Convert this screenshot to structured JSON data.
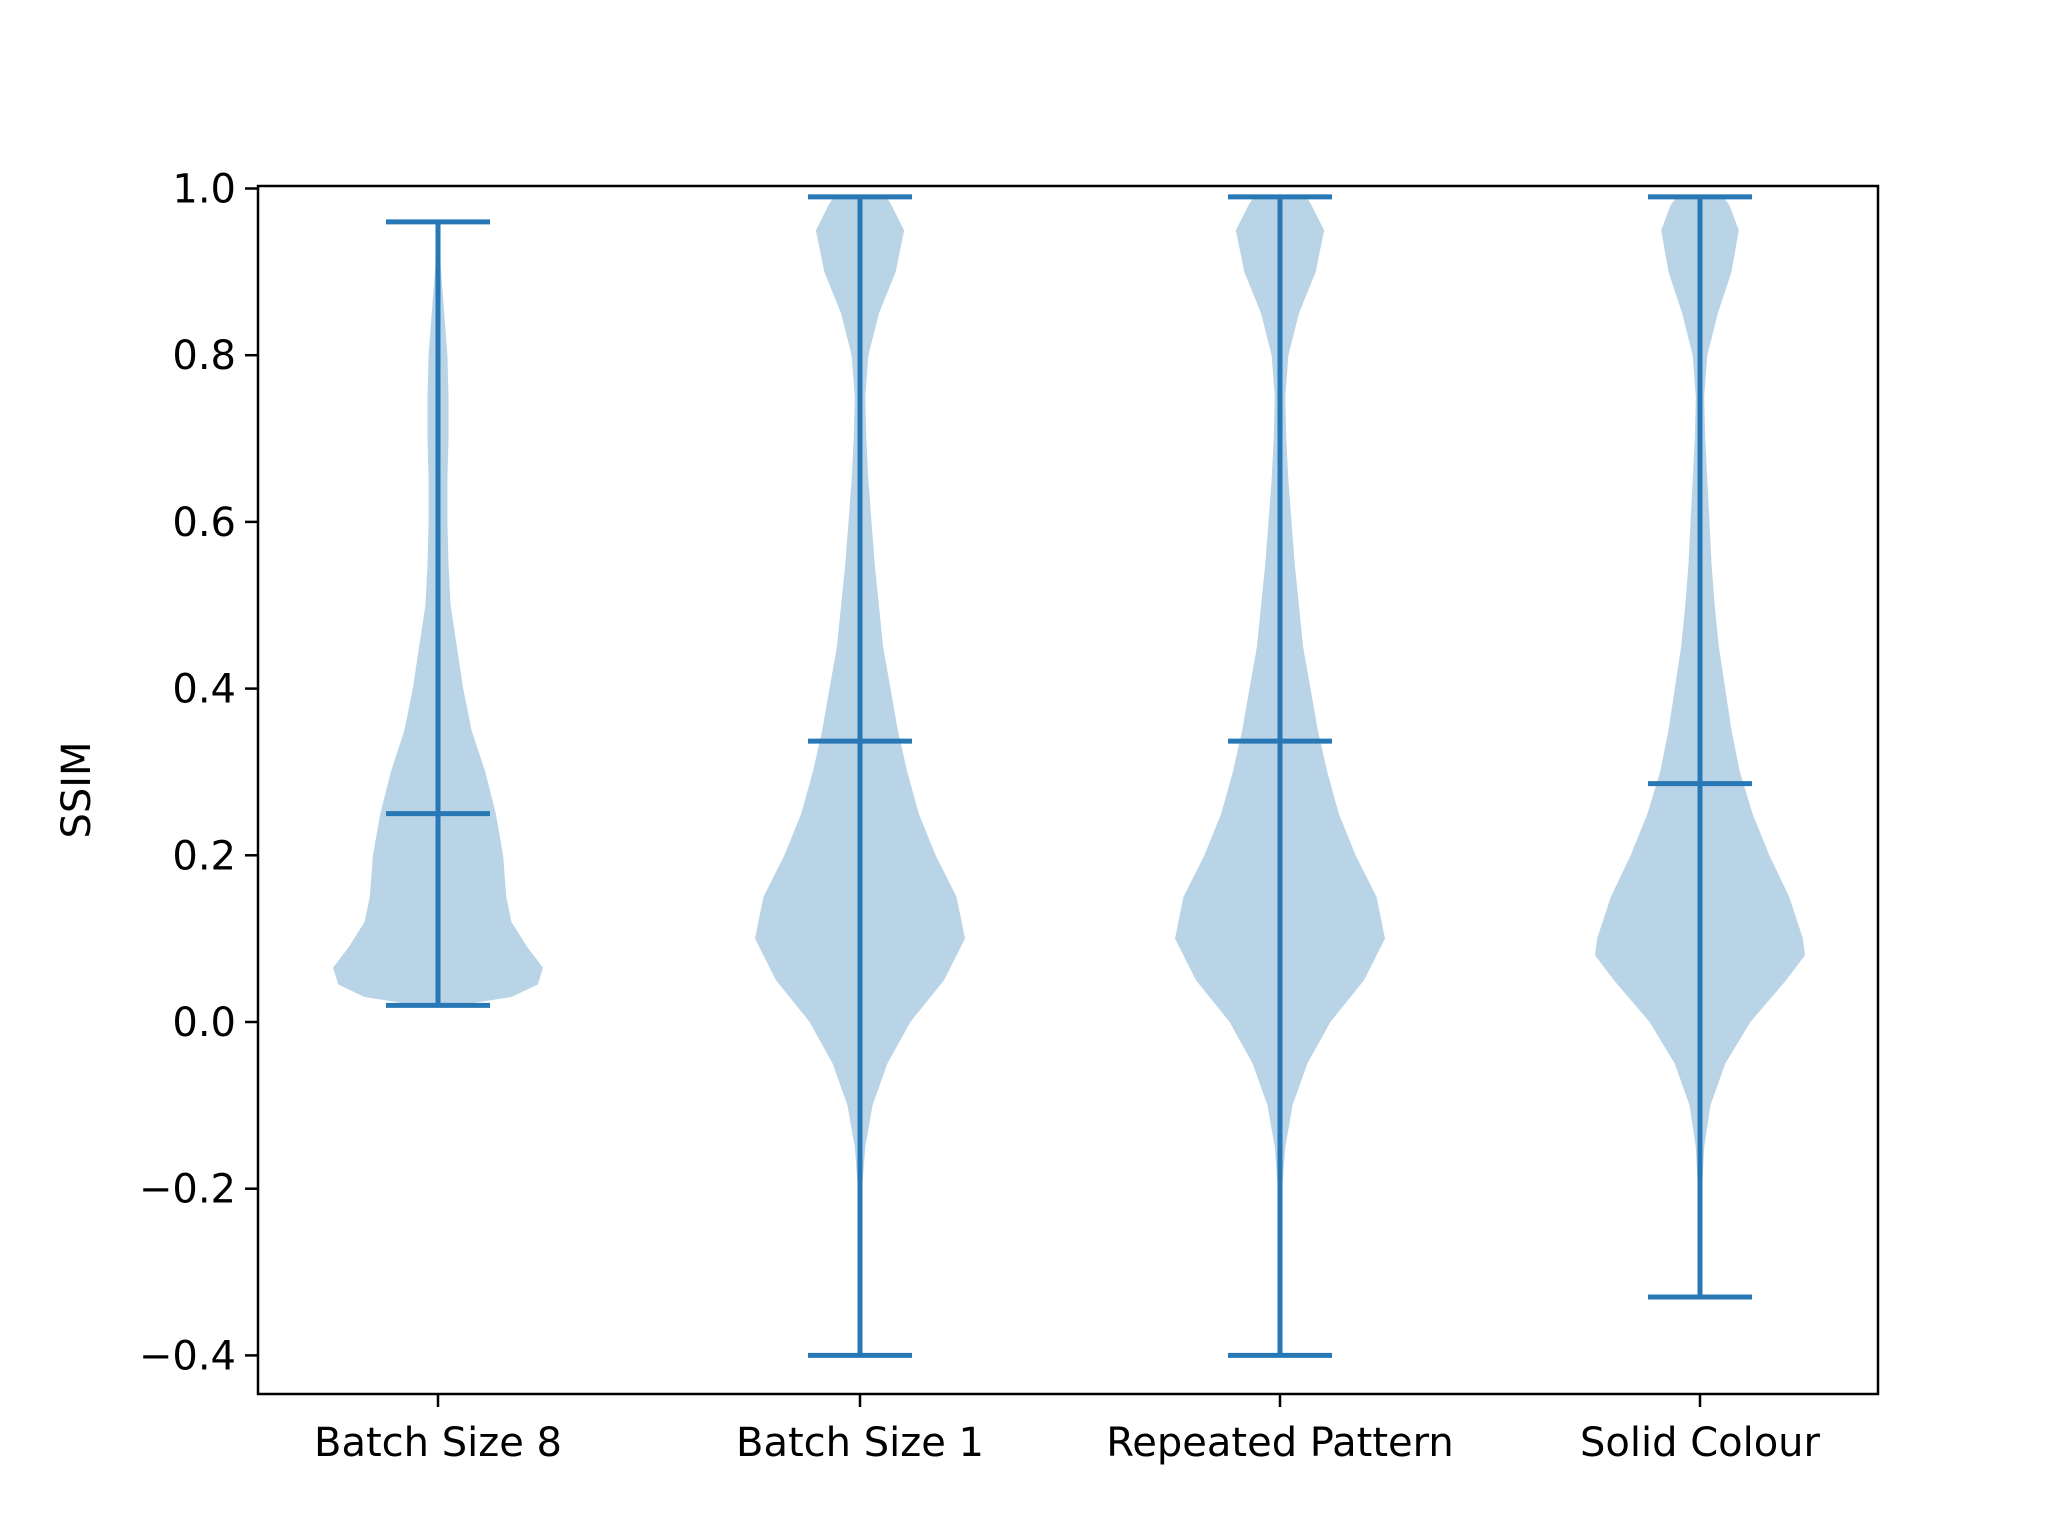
{
  "chart_data": {
    "type": "violin",
    "title": "",
    "xlabel": "",
    "ylabel": "SSIM",
    "ylim": [
      -0.45,
      1.0
    ],
    "yticks": [
      -0.4,
      -0.2,
      0.0,
      0.2,
      0.4,
      0.6,
      0.8,
      1.0
    ],
    "ytick_labels": [
      "−0.4",
      "−0.2",
      "0.0",
      "0.2",
      "0.4",
      "0.6",
      "0.8",
      "1.0"
    ],
    "grid": false,
    "colors": {
      "violin_fill": "#b9d4e7",
      "stat_lines": "#2878b5"
    },
    "categories": [
      "Batch Size 8",
      "Batch Size 1",
      "Repeated Pattern",
      "Solid Colour"
    ],
    "violins": [
      {
        "category": "Batch Size 8",
        "min": 0.02,
        "mean": 0.25,
        "max": 0.96,
        "density": [
          [
            0.02,
            0.2
          ],
          [
            0.03,
            0.7
          ],
          [
            0.045,
            0.95
          ],
          [
            0.065,
            1.0
          ],
          [
            0.09,
            0.85
          ],
          [
            0.12,
            0.7
          ],
          [
            0.15,
            0.65
          ],
          [
            0.2,
            0.62
          ],
          [
            0.25,
            0.55
          ],
          [
            0.3,
            0.45
          ],
          [
            0.35,
            0.32
          ],
          [
            0.4,
            0.24
          ],
          [
            0.45,
            0.18
          ],
          [
            0.5,
            0.12
          ],
          [
            0.55,
            0.1
          ],
          [
            0.6,
            0.09
          ],
          [
            0.65,
            0.09
          ],
          [
            0.7,
            0.1
          ],
          [
            0.75,
            0.1
          ],
          [
            0.8,
            0.09
          ],
          [
            0.85,
            0.06
          ],
          [
            0.9,
            0.03
          ],
          [
            0.96,
            0.0
          ]
        ]
      },
      {
        "category": "Batch Size 1",
        "min": -0.4,
        "mean": 0.337,
        "max": 0.99,
        "density": [
          [
            -0.4,
            0.0
          ],
          [
            -0.3,
            0.01
          ],
          [
            -0.2,
            0.02
          ],
          [
            -0.15,
            0.05
          ],
          [
            -0.1,
            0.12
          ],
          [
            -0.05,
            0.26
          ],
          [
            0.0,
            0.48
          ],
          [
            0.05,
            0.8
          ],
          [
            0.1,
            1.0
          ],
          [
            0.15,
            0.92
          ],
          [
            0.2,
            0.72
          ],
          [
            0.25,
            0.56
          ],
          [
            0.3,
            0.45
          ],
          [
            0.35,
            0.36
          ],
          [
            0.4,
            0.29
          ],
          [
            0.45,
            0.22
          ],
          [
            0.5,
            0.18
          ],
          [
            0.55,
            0.14
          ],
          [
            0.6,
            0.11
          ],
          [
            0.65,
            0.08
          ],
          [
            0.7,
            0.06
          ],
          [
            0.75,
            0.05
          ],
          [
            0.8,
            0.08
          ],
          [
            0.85,
            0.18
          ],
          [
            0.9,
            0.34
          ],
          [
            0.95,
            0.42
          ],
          [
            0.98,
            0.3
          ],
          [
            0.99,
            0.25
          ]
        ]
      },
      {
        "category": "Repeated Pattern",
        "min": -0.4,
        "mean": 0.337,
        "max": 0.99,
        "density": [
          [
            -0.4,
            0.0
          ],
          [
            -0.3,
            0.01
          ],
          [
            -0.2,
            0.02
          ],
          [
            -0.15,
            0.05
          ],
          [
            -0.1,
            0.12
          ],
          [
            -0.05,
            0.26
          ],
          [
            0.0,
            0.48
          ],
          [
            0.05,
            0.8
          ],
          [
            0.1,
            1.0
          ],
          [
            0.15,
            0.92
          ],
          [
            0.2,
            0.72
          ],
          [
            0.25,
            0.56
          ],
          [
            0.3,
            0.45
          ],
          [
            0.35,
            0.36
          ],
          [
            0.4,
            0.29
          ],
          [
            0.45,
            0.22
          ],
          [
            0.5,
            0.18
          ],
          [
            0.55,
            0.14
          ],
          [
            0.6,
            0.11
          ],
          [
            0.65,
            0.08
          ],
          [
            0.7,
            0.06
          ],
          [
            0.75,
            0.05
          ],
          [
            0.8,
            0.08
          ],
          [
            0.85,
            0.18
          ],
          [
            0.9,
            0.34
          ],
          [
            0.95,
            0.42
          ],
          [
            0.98,
            0.3
          ],
          [
            0.99,
            0.25
          ]
        ]
      },
      {
        "category": "Solid Colour",
        "min": -0.33,
        "mean": 0.286,
        "max": 0.99,
        "density": [
          [
            -0.33,
            0.0
          ],
          [
            -0.25,
            0.01
          ],
          [
            -0.2,
            0.02
          ],
          [
            -0.15,
            0.04
          ],
          [
            -0.1,
            0.1
          ],
          [
            -0.05,
            0.24
          ],
          [
            0.0,
            0.48
          ],
          [
            0.05,
            0.82
          ],
          [
            0.08,
            1.0
          ],
          [
            0.1,
            0.98
          ],
          [
            0.15,
            0.85
          ],
          [
            0.2,
            0.66
          ],
          [
            0.25,
            0.5
          ],
          [
            0.3,
            0.38
          ],
          [
            0.35,
            0.3
          ],
          [
            0.4,
            0.24
          ],
          [
            0.45,
            0.18
          ],
          [
            0.5,
            0.14
          ],
          [
            0.55,
            0.11
          ],
          [
            0.6,
            0.09
          ],
          [
            0.65,
            0.07
          ],
          [
            0.7,
            0.05
          ],
          [
            0.75,
            0.04
          ],
          [
            0.8,
            0.07
          ],
          [
            0.85,
            0.17
          ],
          [
            0.9,
            0.3
          ],
          [
            0.95,
            0.37
          ],
          [
            0.98,
            0.28
          ],
          [
            0.99,
            0.22
          ]
        ]
      }
    ]
  }
}
